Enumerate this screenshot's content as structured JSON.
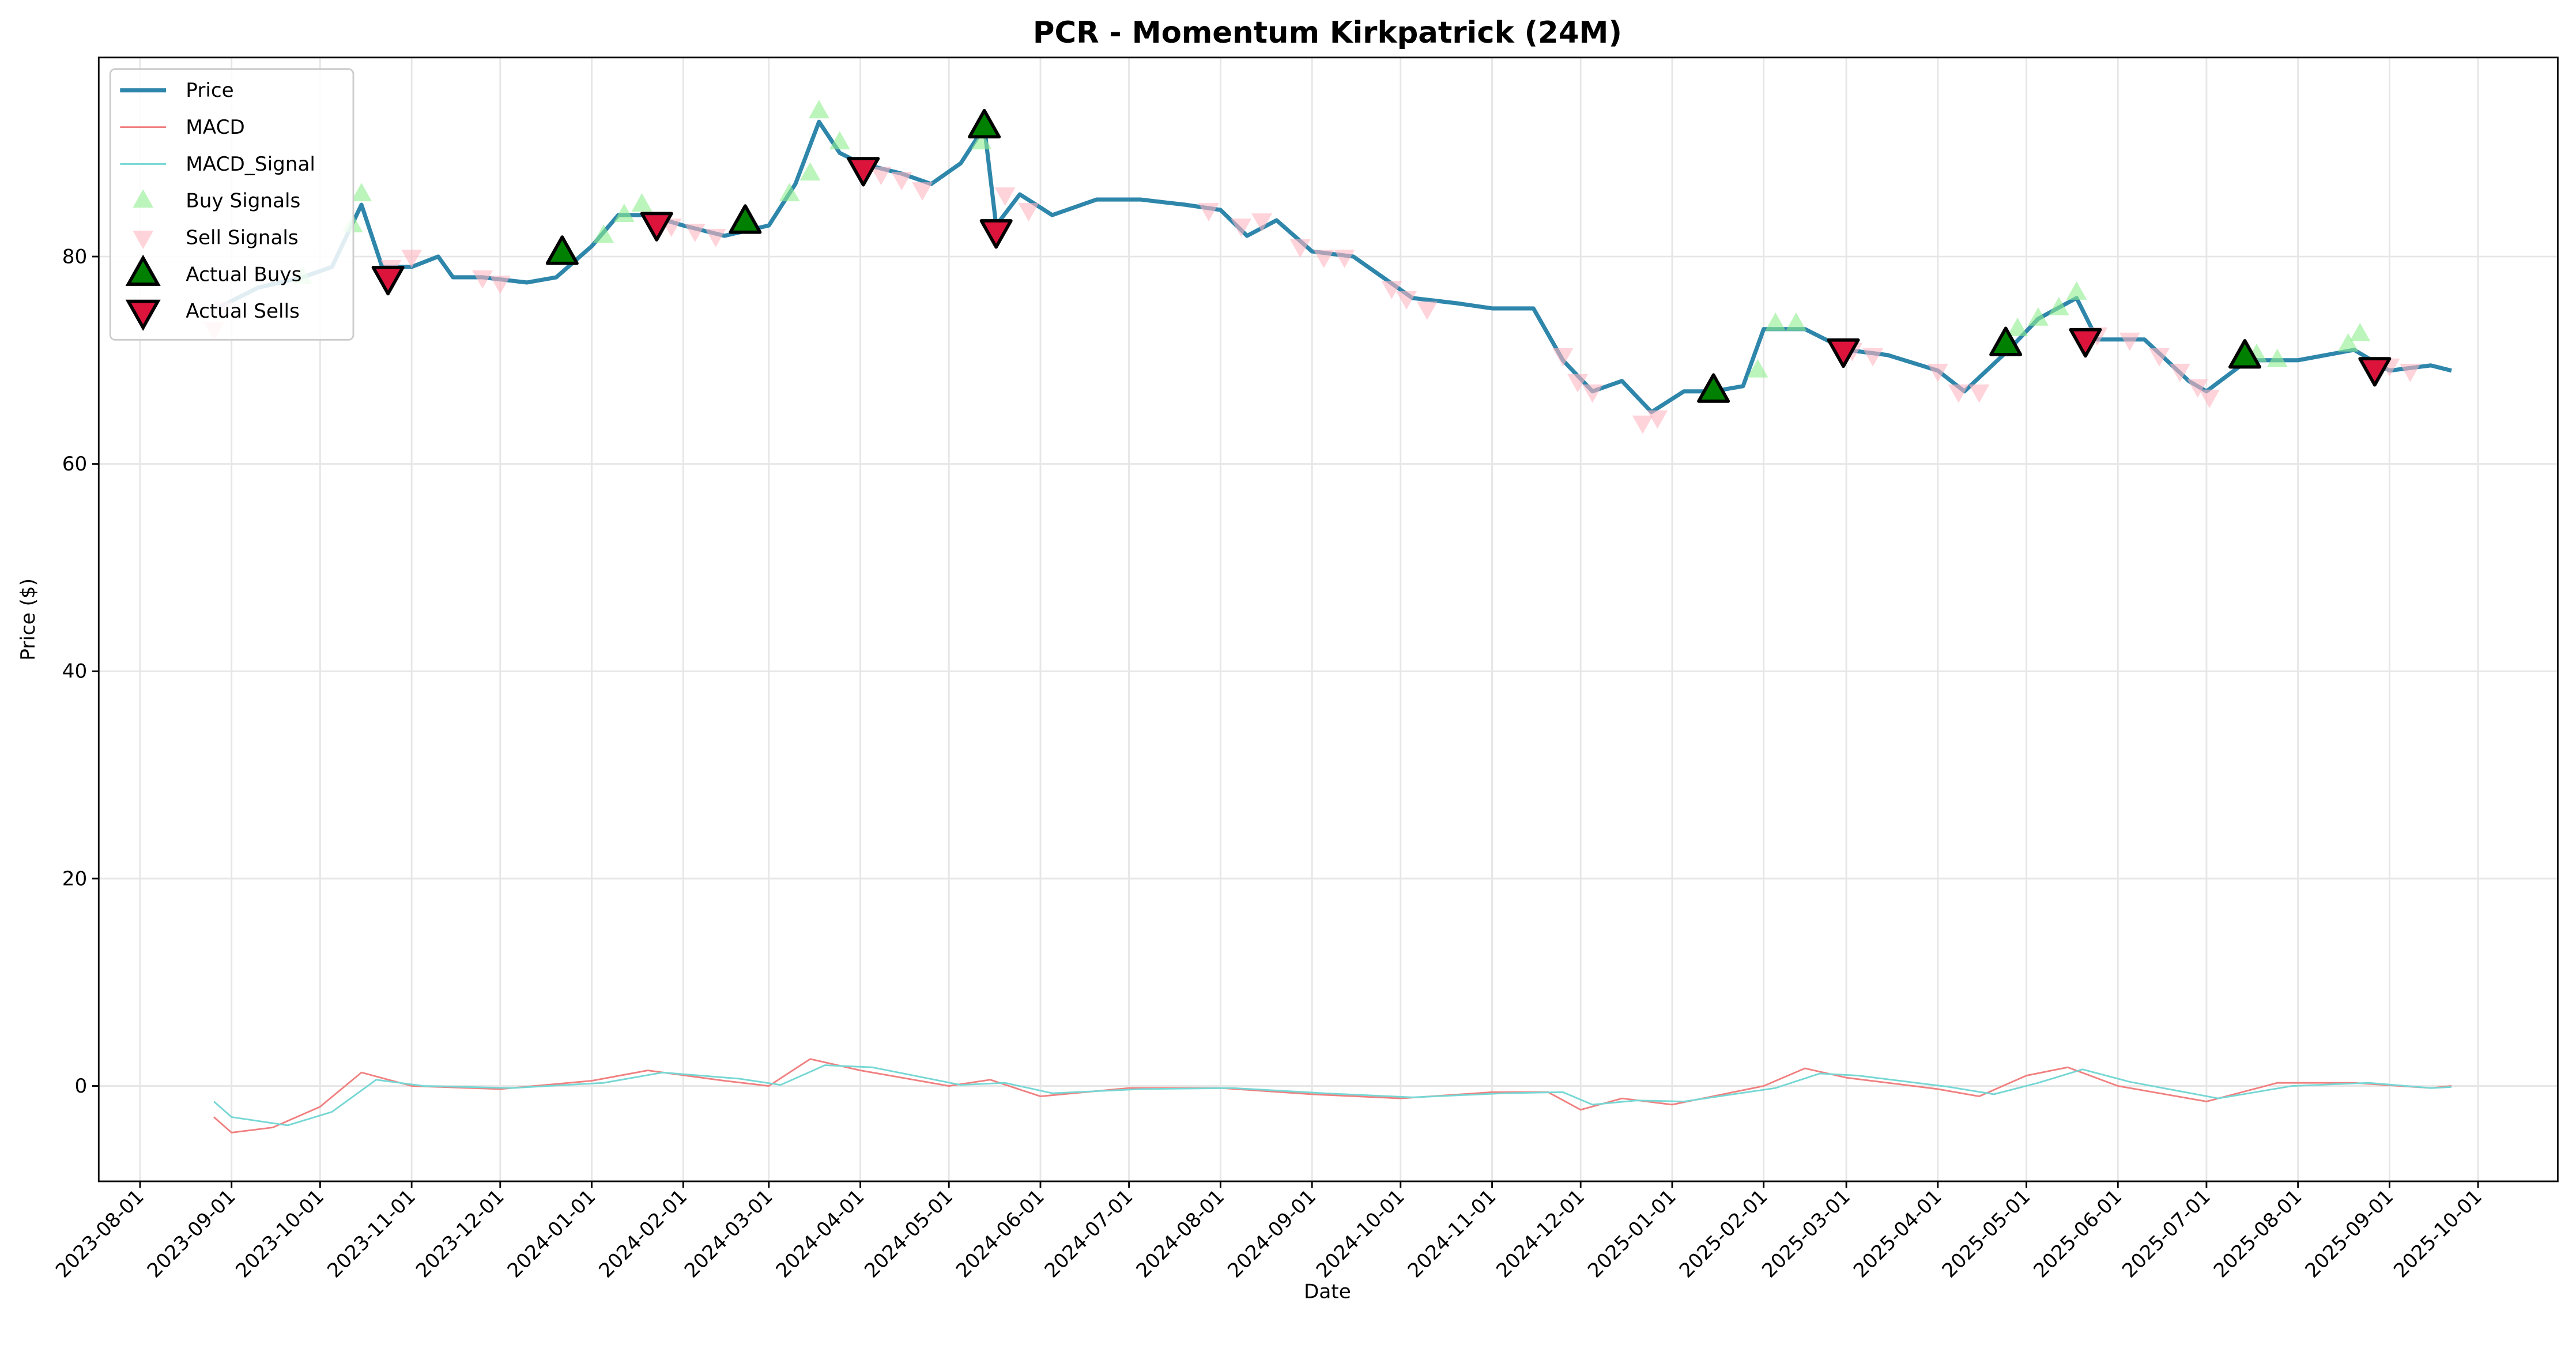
{
  "chart_data": {
    "type": "line",
    "title": "PCR - Momentum Kirkpatrick (24M)",
    "xlabel": "Date",
    "ylabel": "Price ($)",
    "xlim": [
      "2023-07-18",
      "2025-10-28"
    ],
    "ylim": [
      -9.2,
      99.2
    ],
    "xticks": [
      "2023-08-01",
      "2023-09-01",
      "2023-10-01",
      "2023-11-01",
      "2023-12-01",
      "2024-01-01",
      "2024-02-01",
      "2024-03-01",
      "2024-04-01",
      "2024-05-01",
      "2024-06-01",
      "2024-07-01",
      "2024-08-01",
      "2024-09-01",
      "2024-10-01",
      "2024-11-01",
      "2024-12-01",
      "2025-01-01",
      "2025-02-01",
      "2025-03-01",
      "2025-04-01",
      "2025-05-01",
      "2025-06-01",
      "2025-07-01",
      "2025-08-01",
      "2025-09-01",
      "2025-10-01"
    ],
    "yticks": [
      0,
      20,
      40,
      60,
      80
    ],
    "grid": true,
    "legend": "upper left",
    "series": [
      {
        "name": "Price",
        "color": "#2e86ab",
        "kind": "line",
        "width": 2.5,
        "x": [
          "2023-08-27",
          "2023-09-10",
          "2023-09-25",
          "2023-10-05",
          "2023-10-15",
          "2023-10-22",
          "2023-11-01",
          "2023-11-10",
          "2023-11-15",
          "2023-11-25",
          "2023-12-10",
          "2023-12-20",
          "2024-01-01",
          "2024-01-10",
          "2024-01-20",
          "2024-02-01",
          "2024-02-15",
          "2024-03-01",
          "2024-03-10",
          "2024-03-18",
          "2024-03-25",
          "2024-04-01",
          "2024-04-15",
          "2024-04-25",
          "2024-05-05",
          "2024-05-13",
          "2024-05-17",
          "2024-05-25",
          "2024-06-05",
          "2024-06-20",
          "2024-07-05",
          "2024-07-20",
          "2024-08-01",
          "2024-08-10",
          "2024-08-20",
          "2024-09-01",
          "2024-09-15",
          "2024-09-25",
          "2024-10-05",
          "2024-10-20",
          "2024-11-01",
          "2024-11-15",
          "2024-11-25",
          "2024-12-05",
          "2024-12-15",
          "2024-12-25",
          "2025-01-05",
          "2025-01-15",
          "2025-01-25",
          "2025-02-01",
          "2025-02-15",
          "2025-03-01",
          "2025-03-15",
          "2025-04-01",
          "2025-04-10",
          "2025-04-25",
          "2025-05-05",
          "2025-05-18",
          "2025-05-25",
          "2025-06-10",
          "2025-06-25",
          "2025-07-01",
          "2025-07-15",
          "2025-08-01",
          "2025-08-20",
          "2025-09-01",
          "2025-09-15",
          "2025-09-22"
        ],
        "values": [
          75,
          77,
          78,
          79,
          85,
          79,
          79,
          80,
          78,
          78,
          77.5,
          78,
          81,
          84,
          84,
          83,
          82,
          83,
          87,
          93,
          90,
          89,
          88,
          87,
          89,
          92.5,
          83,
          86,
          84,
          85.5,
          85.5,
          85,
          84.5,
          82,
          83.5,
          80.5,
          80,
          78,
          76,
          75.5,
          75,
          75,
          70,
          67,
          68,
          65,
          67,
          67,
          67.5,
          73,
          73,
          71,
          70.5,
          69,
          67,
          71,
          74,
          76,
          72,
          72,
          68,
          67,
          70,
          70,
          71,
          69,
          69.5,
          69
        ]
      },
      {
        "name": "MACD",
        "color": "#f08080",
        "kind": "line",
        "width": 1,
        "x": [
          "2023-08-26",
          "2023-09-01",
          "2023-09-15",
          "2023-10-01",
          "2023-10-15",
          "2023-11-01",
          "2023-12-01",
          "2024-01-01",
          "2024-01-20",
          "2024-02-15",
          "2024-03-01",
          "2024-03-15",
          "2024-04-01",
          "2024-05-01",
          "2024-05-15",
          "2024-06-01",
          "2024-07-01",
          "2024-08-01",
          "2024-09-01",
          "2024-10-01",
          "2024-11-01",
          "2024-11-20",
          "2024-12-01",
          "2024-12-15",
          "2025-01-01",
          "2025-02-01",
          "2025-02-15",
          "2025-03-01",
          "2025-04-01",
          "2025-04-15",
          "2025-05-01",
          "2025-05-15",
          "2025-06-01",
          "2025-07-01",
          "2025-07-25",
          "2025-08-20",
          "2025-09-15",
          "2025-09-22"
        ],
        "values": [
          -3,
          -4.5,
          -4,
          -2,
          1.3,
          0,
          -0.3,
          0.5,
          1.5,
          0.5,
          0,
          2.6,
          1.5,
          0,
          0.6,
          -1,
          -0.2,
          -0.2,
          -0.8,
          -1.2,
          -0.6,
          -0.6,
          -2.3,
          -1.2,
          -1.8,
          0,
          1.7,
          0.8,
          -0.3,
          -1,
          1,
          1.8,
          0,
          -1.5,
          0.3,
          0.3,
          -0.2,
          0
        ]
      },
      {
        "name": "MACD_Signal",
        "color": "#76d7d4",
        "kind": "line",
        "width": 1,
        "x": [
          "2023-08-26",
          "2023-09-01",
          "2023-09-20",
          "2023-10-05",
          "2023-10-20",
          "2023-11-05",
          "2023-12-05",
          "2024-01-05",
          "2024-01-25",
          "2024-02-20",
          "2024-03-05",
          "2024-03-20",
          "2024-04-05",
          "2024-05-05",
          "2024-05-20",
          "2024-06-05",
          "2024-07-05",
          "2024-08-05",
          "2024-09-05",
          "2024-10-05",
          "2024-11-05",
          "2024-11-25",
          "2024-12-05",
          "2024-12-20",
          "2025-01-05",
          "2025-02-05",
          "2025-02-20",
          "2025-03-05",
          "2025-04-05",
          "2025-04-20",
          "2025-05-05",
          "2025-05-20",
          "2025-06-05",
          "2025-07-05",
          "2025-07-30",
          "2025-08-25",
          "2025-09-15",
          "2025-09-22"
        ],
        "values": [
          -1.5,
          -3,
          -3.8,
          -2.5,
          0.6,
          0,
          -0.2,
          0.3,
          1.3,
          0.7,
          0.1,
          2,
          1.8,
          0.1,
          0.3,
          -0.7,
          -0.3,
          -0.2,
          -0.7,
          -1.1,
          -0.7,
          -0.6,
          -1.8,
          -1.4,
          -1.5,
          -0.2,
          1.2,
          1,
          -0.1,
          -0.8,
          0.3,
          1.6,
          0.4,
          -1.2,
          0,
          0.3,
          -0.2,
          -0.1
        ]
      },
      {
        "name": "Buy Signals",
        "color": "#90ee90",
        "kind": "marker",
        "marker": "up",
        "size": 7,
        "opacity": 0.6,
        "x": [
          "2023-09-25",
          "2023-10-12",
          "2023-10-15",
          "2024-01-05",
          "2024-01-12",
          "2024-01-18",
          "2024-03-08",
          "2024-03-15",
          "2024-03-18",
          "2024-03-25",
          "2024-05-12",
          "2025-01-30",
          "2025-02-05",
          "2025-02-12",
          "2025-04-28",
          "2025-05-05",
          "2025-05-12",
          "2025-05-18",
          "2025-07-18",
          "2025-07-25",
          "2025-08-18",
          "2025-08-22"
        ],
        "values": [
          78,
          83,
          86,
          82,
          84,
          85,
          86,
          88,
          94,
          91,
          91,
          69,
          73.5,
          73.5,
          73,
          74,
          75,
          76.5,
          70.5,
          70,
          71.5,
          72.5
        ]
      },
      {
        "name": "Sell Signals",
        "color": "#ffb6c1",
        "kind": "marker",
        "marker": "down",
        "size": 7,
        "opacity": 0.6,
        "x": [
          "2023-08-26",
          "2023-08-29",
          "2023-10-25",
          "2023-11-01",
          "2023-11-25",
          "2023-12-01",
          "2024-01-28",
          "2024-02-05",
          "2024-02-12",
          "2024-04-08",
          "2024-04-15",
          "2024-04-22",
          "2024-05-20",
          "2024-05-28",
          "2024-07-28",
          "2024-08-08",
          "2024-08-15",
          "2024-08-28",
          "2024-09-05",
          "2024-09-12",
          "2024-09-28",
          "2024-10-03",
          "2024-10-10",
          "2024-11-25",
          "2024-11-30",
          "2024-12-05",
          "2024-12-22",
          "2024-12-27",
          "2025-03-03",
          "2025-03-10",
          "2025-04-01",
          "2025-04-08",
          "2025-04-15",
          "2025-05-25",
          "2025-06-05",
          "2025-06-15",
          "2025-06-22",
          "2025-06-28",
          "2025-07-02",
          "2025-09-01",
          "2025-09-08"
        ],
        "values": [
          73,
          75,
          79,
          80,
          78,
          77.5,
          83,
          82.5,
          82,
          88,
          87.5,
          86.5,
          86,
          84.5,
          84.5,
          83,
          83.5,
          81,
          80,
          80,
          77,
          76,
          75,
          70.5,
          68,
          67,
          64,
          64.5,
          71,
          70.5,
          69,
          67,
          67,
          72.5,
          72,
          70.5,
          69,
          67.5,
          66.5,
          69.5,
          69
        ]
      },
      {
        "name": "Actual Buys",
        "color": "#008000",
        "kind": "marker",
        "marker": "up",
        "size": 10,
        "opacity": 1,
        "x": [
          "2023-12-22",
          "2024-02-22",
          "2024-05-13",
          "2025-01-15",
          "2025-04-24",
          "2025-07-14"
        ],
        "values": [
          80.3,
          83.3,
          92.5,
          67,
          71.5,
          70.3
        ]
      },
      {
        "name": "Actual Sells",
        "color": "#dc143c",
        "kind": "marker",
        "marker": "down",
        "size": 10,
        "opacity": 1,
        "x": [
          "2023-10-24",
          "2024-01-23",
          "2024-04-02",
          "2024-05-17",
          "2025-02-28",
          "2025-05-21",
          "2025-08-27"
        ],
        "values": [
          78,
          83.2,
          88.5,
          82.5,
          71,
          72,
          69.2
        ]
      }
    ]
  }
}
